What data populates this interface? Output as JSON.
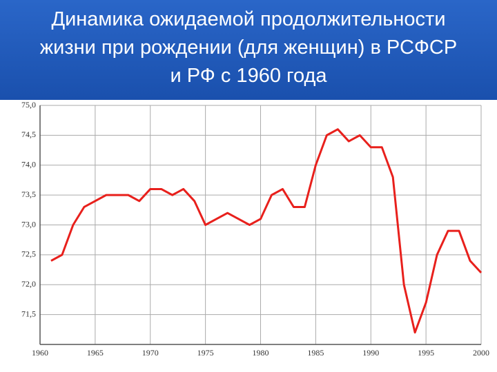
{
  "chart_data": {
    "type": "line",
    "title": "Динамика ожидаемой продолжительности\nжизни при рождении (для женщин) в РСФСР\nи РФ с 1960 года",
    "x": [
      1961,
      1962,
      1963,
      1964,
      1965,
      1966,
      1967,
      1968,
      1969,
      1970,
      1971,
      1972,
      1973,
      1974,
      1975,
      1976,
      1977,
      1978,
      1979,
      1980,
      1981,
      1982,
      1983,
      1984,
      1985,
      1986,
      1987,
      1988,
      1989,
      1990,
      1991,
      1992,
      1993,
      1994,
      1995,
      1996,
      1997,
      1998,
      1999,
      2000
    ],
    "series": [
      {
        "color": "#e8201c",
        "values": [
          72.4,
          72.5,
          73.0,
          73.3,
          73.4,
          73.5,
          73.5,
          73.5,
          73.4,
          73.6,
          73.6,
          73.5,
          73.6,
          73.4,
          73.0,
          73.1,
          73.2,
          73.1,
          73.0,
          73.1,
          73.5,
          73.6,
          73.3,
          73.3,
          74.0,
          74.5,
          74.6,
          74.4,
          74.5,
          74.3,
          74.3,
          73.8,
          72.0,
          71.2,
          71.7,
          72.5,
          72.9,
          72.9,
          72.4,
          72.2
        ]
      }
    ],
    "xlim": [
      1960,
      2000
    ],
    "xticks": [
      1960,
      1965,
      1970,
      1975,
      1980,
      1985,
      1990,
      1995,
      2000
    ],
    "ylim": [
      71,
      75
    ],
    "yticks": [
      {
        "value": 71.5,
        "label": "71,5"
      },
      {
        "value": 72,
        "label": "72,0"
      },
      {
        "value": 72.5,
        "label": "72,5"
      },
      {
        "value": 73,
        "label": "73,0"
      },
      {
        "value": 73.5,
        "label": "73,5"
      },
      {
        "value": 74,
        "label": "74,0"
      },
      {
        "value": 74.5,
        "label": "74,5"
      },
      {
        "value": 75,
        "label": "75,0"
      }
    ],
    "grid": true
  }
}
